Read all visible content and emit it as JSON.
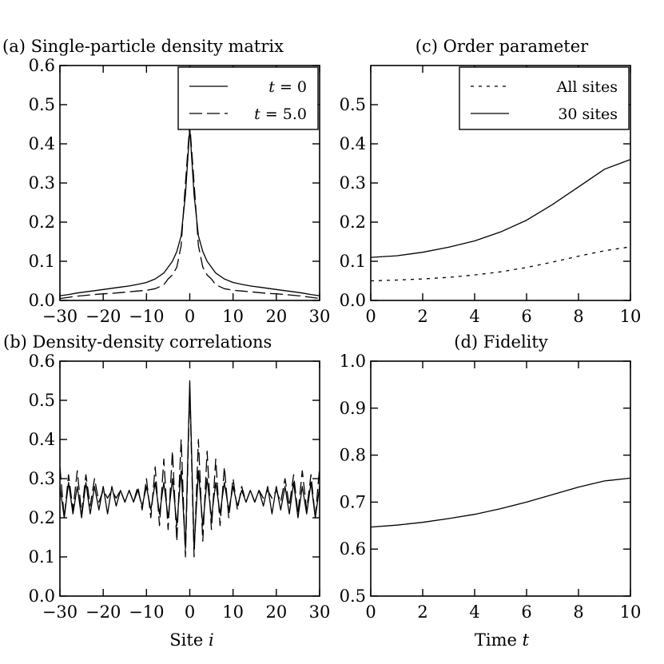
{
  "figure": {
    "xlabel_left": "Site",
    "xlabel_left_var": "i",
    "xlabel_right": "Time",
    "xlabel_right_var": "t"
  },
  "chart_data": [
    {
      "id": "a",
      "type": "line",
      "title": "(a) Single-particle density matrix",
      "xlabel": "",
      "ylabel": "",
      "xlim": [
        -30,
        30
      ],
      "ylim": [
        0,
        0.6
      ],
      "xticks": [
        -30,
        -20,
        -10,
        0,
        10,
        20,
        30
      ],
      "xtick_labels": [
        "−30",
        "−20",
        "−10",
        "0",
        "10",
        "20",
        "30"
      ],
      "yticks": [
        0.0,
        0.1,
        0.2,
        0.3,
        0.4,
        0.5,
        0.6
      ],
      "ytick_labels": [
        "0.0",
        "0.1",
        "0.2",
        "0.3",
        "0.4",
        "0.5",
        "0.6"
      ],
      "legend": {
        "position": "top-right",
        "entries": [
          {
            "label_var": "t",
            "label_rest": " = 0",
            "style": "solid"
          },
          {
            "label_var": "t",
            "label_rest": " = 5.0",
            "style": "dashed"
          }
        ]
      },
      "series": [
        {
          "name": "t = 0",
          "style": "solid",
          "x": [
            -30,
            -28,
            -26,
            -24,
            -22,
            -20,
            -18,
            -16,
            -14,
            -12,
            -10,
            -8,
            -6,
            -5,
            -4,
            -3,
            -2,
            -1,
            0,
            1,
            2,
            3,
            4,
            5,
            6,
            8,
            10,
            12,
            14,
            16,
            18,
            20,
            22,
            24,
            26,
            28,
            30
          ],
          "y": [
            0.012,
            0.015,
            0.019,
            0.022,
            0.025,
            0.028,
            0.031,
            0.034,
            0.037,
            0.041,
            0.046,
            0.055,
            0.07,
            0.085,
            0.1,
            0.125,
            0.165,
            0.27,
            0.44,
            0.27,
            0.165,
            0.125,
            0.1,
            0.085,
            0.07,
            0.055,
            0.046,
            0.041,
            0.037,
            0.034,
            0.031,
            0.028,
            0.025,
            0.022,
            0.019,
            0.015,
            0.012
          ]
        },
        {
          "name": "t = 5.0",
          "style": "dashed",
          "x": [
            -30,
            -28,
            -26,
            -24,
            -22,
            -20,
            -18,
            -16,
            -14,
            -12,
            -10,
            -8,
            -6,
            -5,
            -4,
            -3,
            -2,
            -1,
            0,
            1,
            2,
            3,
            4,
            5,
            6,
            8,
            10,
            12,
            14,
            16,
            18,
            20,
            22,
            24,
            26,
            28,
            30
          ],
          "y": [
            0.005,
            0.008,
            0.011,
            0.013,
            0.015,
            0.017,
            0.018,
            0.02,
            0.022,
            0.024,
            0.026,
            0.03,
            0.04,
            0.055,
            0.065,
            0.085,
            0.14,
            0.3,
            0.45,
            0.3,
            0.14,
            0.085,
            0.065,
            0.055,
            0.04,
            0.03,
            0.026,
            0.024,
            0.022,
            0.02,
            0.018,
            0.017,
            0.015,
            0.013,
            0.011,
            0.008,
            0.005
          ]
        }
      ]
    },
    {
      "id": "c",
      "type": "line",
      "title": "(c) Order parameter",
      "xlabel": "",
      "ylabel": "",
      "xlim": [
        0,
        10
      ],
      "ylim": [
        0,
        0.6
      ],
      "xticks": [
        0,
        2,
        4,
        6,
        8,
        10
      ],
      "xtick_labels": [
        "0",
        "2",
        "4",
        "6",
        "8",
        "10"
      ],
      "yticks": [
        0.0,
        0.1,
        0.2,
        0.3,
        0.4,
        0.5
      ],
      "ytick_labels": [
        "0.0",
        "0.1",
        "0.2",
        "0.3",
        "0.4",
        "0.5"
      ],
      "legend": {
        "position": "top-right",
        "entries": [
          {
            "label": "All sites",
            "style": "dotted"
          },
          {
            "label": "30 sites",
            "style": "solid"
          }
        ]
      },
      "series": [
        {
          "name": "All sites",
          "style": "dotted",
          "x": [
            0,
            1,
            2,
            3,
            4,
            5,
            6,
            7,
            8,
            9,
            10
          ],
          "y": [
            0.05,
            0.052,
            0.055,
            0.059,
            0.065,
            0.073,
            0.084,
            0.098,
            0.113,
            0.127,
            0.137
          ]
        },
        {
          "name": "30 sites",
          "style": "solid",
          "x": [
            0,
            1,
            2,
            3,
            4,
            5,
            6,
            7,
            8,
            9,
            10
          ],
          "y": [
            0.11,
            0.114,
            0.123,
            0.136,
            0.152,
            0.175,
            0.205,
            0.245,
            0.29,
            0.335,
            0.36
          ]
        }
      ]
    },
    {
      "id": "b",
      "type": "line",
      "title": "(b) Density-density correlations",
      "xlabel": "Site i",
      "ylabel": "",
      "xlim": [
        -30,
        30
      ],
      "ylim": [
        0,
        0.6
      ],
      "xticks": [
        -30,
        -20,
        -10,
        0,
        10,
        20,
        30
      ],
      "xtick_labels": [
        "−30",
        "−20",
        "−10",
        "0",
        "10",
        "20",
        "30"
      ],
      "yticks": [
        0.0,
        0.1,
        0.2,
        0.3,
        0.4,
        0.5,
        0.6
      ],
      "ytick_labels": [
        "0.0",
        "0.1",
        "0.2",
        "0.3",
        "0.4",
        "0.5",
        "0.6"
      ],
      "series": [
        {
          "name": "t = 0",
          "style": "solid",
          "x": [
            -30,
            -29,
            -28,
            -27,
            -26,
            -25,
            -24,
            -23,
            -22,
            -21,
            -20,
            -19,
            -18,
            -17,
            -16,
            -15,
            -14,
            -13,
            -12,
            -11,
            -10,
            -9,
            -8,
            -7,
            -6,
            -5,
            -4,
            -3,
            -2,
            -1,
            0,
            1,
            2,
            3,
            4,
            5,
            6,
            7,
            8,
            9,
            10,
            11,
            12,
            13,
            14,
            15,
            16,
            17,
            18,
            19,
            20,
            21,
            22,
            23,
            24,
            25,
            26,
            27,
            28,
            29,
            30
          ],
          "y": [
            0.28,
            0.2,
            0.29,
            0.21,
            0.28,
            0.2,
            0.29,
            0.21,
            0.28,
            0.22,
            0.28,
            0.21,
            0.28,
            0.23,
            0.27,
            0.24,
            0.27,
            0.24,
            0.27,
            0.23,
            0.28,
            0.22,
            0.29,
            0.21,
            0.29,
            0.2,
            0.3,
            0.18,
            0.32,
            0.12,
            0.55,
            0.12,
            0.32,
            0.18,
            0.3,
            0.2,
            0.29,
            0.21,
            0.29,
            0.22,
            0.28,
            0.23,
            0.27,
            0.24,
            0.27,
            0.24,
            0.27,
            0.23,
            0.28,
            0.21,
            0.28,
            0.22,
            0.28,
            0.21,
            0.29,
            0.2,
            0.28,
            0.21,
            0.29,
            0.2,
            0.28
          ]
        },
        {
          "name": "t = 5.0",
          "style": "dashed",
          "x": [
            -30,
            -29,
            -28,
            -27,
            -26,
            -25,
            -24,
            -23,
            -22,
            -21,
            -20,
            -19,
            -18,
            -17,
            -16,
            -15,
            -14,
            -13,
            -12,
            -11,
            -10,
            -9,
            -8,
            -7,
            -6,
            -5,
            -4,
            -3,
            -2,
            -1,
            0,
            1,
            2,
            3,
            4,
            5,
            6,
            7,
            8,
            9,
            10,
            11,
            12,
            13,
            14,
            15,
            16,
            17,
            18,
            19,
            20,
            21,
            22,
            23,
            24,
            25,
            26,
            27,
            28,
            29,
            30
          ],
          "y": [
            0.33,
            0.2,
            0.31,
            0.22,
            0.32,
            0.21,
            0.31,
            0.23,
            0.3,
            0.24,
            0.27,
            0.25,
            0.27,
            0.25,
            0.27,
            0.24,
            0.27,
            0.24,
            0.28,
            0.22,
            0.3,
            0.2,
            0.33,
            0.18,
            0.35,
            0.17,
            0.37,
            0.14,
            0.4,
            0.1,
            0.53,
            0.1,
            0.4,
            0.14,
            0.37,
            0.17,
            0.35,
            0.18,
            0.33,
            0.2,
            0.3,
            0.22,
            0.28,
            0.24,
            0.27,
            0.24,
            0.27,
            0.25,
            0.27,
            0.25,
            0.27,
            0.24,
            0.3,
            0.23,
            0.31,
            0.21,
            0.32,
            0.22,
            0.31,
            0.2,
            0.33
          ]
        }
      ]
    },
    {
      "id": "d",
      "type": "line",
      "title": "(d) Fidelity",
      "xlabel": "Time t",
      "ylabel": "",
      "xlim": [
        0,
        10
      ],
      "ylim": [
        0.5,
        1.0
      ],
      "xticks": [
        0,
        2,
        4,
        6,
        8,
        10
      ],
      "xtick_labels": [
        "0",
        "2",
        "4",
        "6",
        "8",
        "10"
      ],
      "yticks": [
        0.5,
        0.6,
        0.7,
        0.8,
        0.9,
        1.0
      ],
      "ytick_labels": [
        "0.5",
        "0.6",
        "0.7",
        "0.8",
        "0.9",
        "1.0"
      ],
      "series": [
        {
          "name": "fidelity",
          "style": "solid",
          "x": [
            0,
            1,
            2,
            3,
            4,
            5,
            6,
            7,
            8,
            9,
            10
          ],
          "y": [
            0.647,
            0.651,
            0.657,
            0.665,
            0.674,
            0.686,
            0.7,
            0.716,
            0.732,
            0.745,
            0.751
          ]
        }
      ]
    }
  ]
}
